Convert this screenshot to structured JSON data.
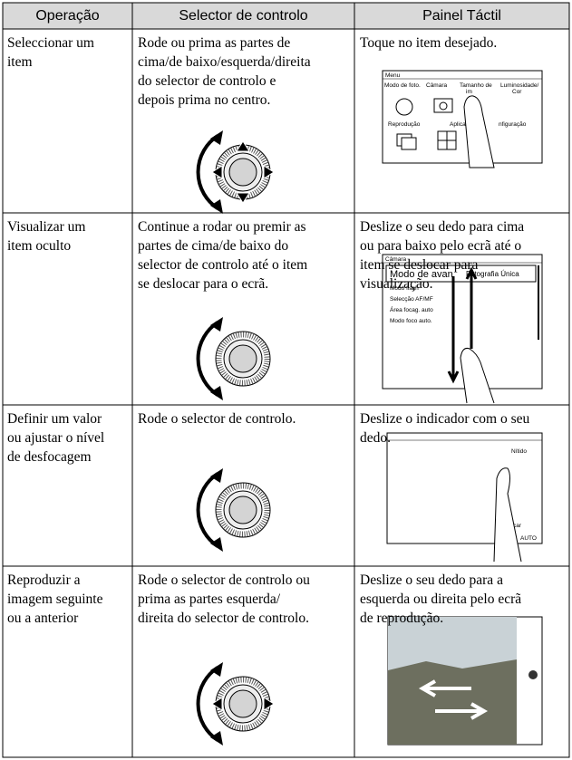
{
  "table": {
    "header": [
      "Operação",
      "Selector de controlo",
      "Painel Táctil"
    ],
    "rows": [
      {
        "cells": [
          [
            "Seleccionar um",
            "item"
          ],
          [
            "Rode ou prima as partes de",
            "cima/de baixo/esquerda/direita",
            "do selector de controlo e",
            "depois prima no centro."
          ],
          [
            "Toque no item desejado."
          ]
        ],
        "screen": [
          "Menu",
          "Modo de foto.",
          "Câmara",
          "Tamanho de",
          "im",
          "Luminosidade/",
          "Cor",
          "Reprodução",
          "Aplicaçã",
          "nfiguração"
        ]
      },
      {
        "cells": [
          [
            "Visualizar um",
            "item oculto"
          ],
          [
            "Continue a rodar ou premir as",
            "partes de cima/de baixo do",
            "selector de controlo até o item",
            "se deslocar para o ecrã."
          ],
          [
            "Deslize o seu dedo para cima",
            "ou para baixo pelo ecrã até o",
            "item se deslocar para",
            "visualização."
          ]
        ],
        "screen": [
          "Câmara",
          "Modo de avan",
          "Fotografia Única",
          "Modo flash",
          "Selecção AF/MF",
          "Área focag. auto",
          "Modo foco auto."
        ]
      },
      {
        "cells": [
          [
            "Definir um valor",
            "ou ajustar o nível",
            "de desfocagem"
          ],
          [
            "Rode o selector de controlo."
          ],
          [
            "Deslize o indicador com o seu",
            "dedo."
          ]
        ],
        "screen": [
          "Nítido",
          "car",
          "AUTO"
        ]
      },
      {
        "cells": [
          [
            "Reproduzir a",
            "imagem seguinte",
            "ou a anterior"
          ],
          [
            "Rode o selector de controlo ou",
            "prima as partes esquerda/",
            "direita do selector de controlo."
          ],
          [
            "Deslize o seu dedo para a",
            "esquerda ou direita pelo ecrã",
            "de reprodução."
          ]
        ]
      }
    ]
  }
}
